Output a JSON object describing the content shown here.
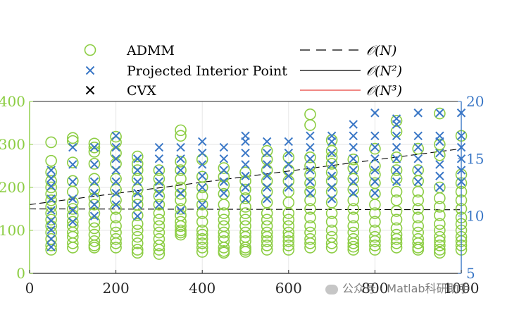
{
  "chart_data": {
    "type": "scatter",
    "legend": {
      "placement": "top",
      "entries": [
        {
          "label": "ADMM",
          "marker": "circle",
          "color": "#8ccd43"
        },
        {
          "label": "Projected Interior Point",
          "marker": "x",
          "color": "#3a77c6"
        },
        {
          "label": "CVX",
          "marker": "x",
          "color": "#000000"
        },
        {
          "label": "𝒪(N)",
          "line": "dashed",
          "color": "#000000"
        },
        {
          "label": "𝒪(N²)",
          "line": "solid",
          "color": "#000000"
        },
        {
          "label": "𝒪(N³)",
          "line": "solid",
          "color": "#e8403a"
        }
      ]
    },
    "x_axis": {
      "lim": [
        0,
        1000
      ],
      "ticks": [
        "0",
        "200",
        "400",
        "600",
        "800",
        "1000"
      ],
      "tick_values": [
        0,
        200,
        400,
        600,
        800,
        1000
      ]
    },
    "y_left": {
      "lim": [
        0,
        400
      ],
      "ticks": [
        "0",
        "100",
        "200",
        "300",
        "400"
      ],
      "tick_values": [
        0,
        100,
        200,
        300,
        400
      ],
      "color": "#8ccd43"
    },
    "y_right": {
      "lim": [
        5,
        20
      ],
      "ticks": [
        "5",
        "10",
        "15",
        "20"
      ],
      "tick_values": [
        5,
        10,
        15,
        20
      ],
      "color": "#3a77c6"
    },
    "grid": true,
    "series": [
      {
        "name": "ADMM",
        "axis": "left",
        "marker": "circle",
        "color": "#8ccd43",
        "x": [
          50,
          50,
          50,
          50,
          50,
          50,
          50,
          50,
          50,
          50,
          50,
          50,
          50,
          50,
          50,
          100,
          100,
          100,
          100,
          100,
          100,
          100,
          100,
          100,
          100,
          100,
          100,
          100,
          100,
          150,
          150,
          150,
          150,
          150,
          150,
          150,
          150,
          150,
          150,
          150,
          150,
          150,
          150,
          150,
          200,
          200,
          200,
          200,
          200,
          200,
          200,
          200,
          200,
          200,
          200,
          200,
          200,
          200,
          250,
          250,
          250,
          250,
          250,
          250,
          250,
          250,
          250,
          250,
          250,
          250,
          250,
          250,
          300,
          300,
          300,
          300,
          300,
          300,
          300,
          300,
          300,
          300,
          300,
          300,
          300,
          350,
          350,
          350,
          350,
          350,
          350,
          350,
          350,
          350,
          350,
          350,
          350,
          350,
          350,
          350,
          400,
          400,
          400,
          400,
          400,
          400,
          400,
          400,
          400,
          400,
          400,
          400,
          400,
          450,
          450,
          450,
          450,
          450,
          450,
          450,
          450,
          450,
          450,
          450,
          450,
          450,
          450,
          500,
          500,
          500,
          500,
          500,
          500,
          500,
          500,
          500,
          500,
          500,
          500,
          500,
          500,
          550,
          550,
          550,
          550,
          550,
          550,
          550,
          550,
          550,
          550,
          550,
          550,
          550,
          550,
          600,
          600,
          600,
          600,
          600,
          600,
          600,
          600,
          600,
          600,
          600,
          600,
          600,
          650,
          650,
          650,
          650,
          650,
          650,
          650,
          650,
          650,
          650,
          650,
          650,
          650,
          650,
          650,
          700,
          700,
          700,
          700,
          700,
          700,
          700,
          700,
          700,
          700,
          700,
          700,
          700,
          700,
          750,
          750,
          750,
          750,
          750,
          750,
          750,
          750,
          750,
          750,
          750,
          750,
          750,
          800,
          800,
          800,
          800,
          800,
          800,
          800,
          800,
          800,
          800,
          800,
          800,
          800,
          850,
          850,
          850,
          850,
          850,
          850,
          850,
          850,
          850,
          850,
          850,
          850,
          850,
          850,
          900,
          900,
          900,
          900,
          900,
          900,
          900,
          900,
          900,
          900,
          900,
          900,
          900,
          950,
          950,
          950,
          950,
          950,
          950,
          950,
          950,
          950,
          950,
          950,
          950,
          950,
          950,
          1000,
          1000,
          1000,
          1000,
          1000,
          1000,
          1000,
          1000,
          1000,
          1000,
          1000,
          1000,
          1000
        ],
        "y": [
          305,
          262,
          235,
          215,
          200,
          185,
          170,
          155,
          140,
          125,
          110,
          95,
          80,
          65,
          55,
          315,
          308,
          258,
          215,
          190,
          165,
          150,
          135,
          120,
          110,
          95,
          85,
          70,
          60,
          302,
          293,
          283,
          255,
          220,
          195,
          175,
          160,
          140,
          120,
          105,
          90,
          75,
          65,
          60,
          318,
          305,
          280,
          255,
          220,
          195,
          170,
          150,
          130,
          110,
          95,
          80,
          70,
          60,
          272,
          255,
          240,
          220,
          195,
          175,
          160,
          135,
          115,
          100,
          85,
          70,
          55,
          48,
          240,
          220,
          200,
          180,
          160,
          140,
          125,
          110,
          95,
          80,
          65,
          55,
          45,
          333,
          320,
          260,
          240,
          220,
          200,
          185,
          170,
          150,
          135,
          120,
          110,
          100,
          95,
          90,
          265,
          225,
          200,
          180,
          160,
          140,
          120,
          100,
          90,
          80,
          70,
          60,
          50,
          245,
          225,
          205,
          185,
          160,
          140,
          125,
          110,
          95,
          85,
          75,
          60,
          52,
          48,
          235,
          215,
          195,
          175,
          155,
          140,
          125,
          110,
          95,
          85,
          75,
          60,
          55,
          50,
          285,
          265,
          240,
          215,
          190,
          165,
          140,
          125,
          110,
          95,
          85,
          75,
          65,
          55,
          270,
          240,
          215,
          190,
          165,
          140,
          125,
          110,
          95,
          85,
          75,
          65,
          55,
          370,
          345,
          270,
          250,
          230,
          210,
          190,
          170,
          150,
          130,
          110,
          95,
          80,
          70,
          60,
          310,
          285,
          270,
          255,
          235,
          215,
          190,
          165,
          140,
          120,
          100,
          85,
          70,
          60,
          265,
          245,
          220,
          195,
          170,
          150,
          130,
          110,
          95,
          80,
          70,
          62,
          55,
          290,
          250,
          230,
          210,
          185,
          160,
          140,
          120,
          100,
          85,
          75,
          65,
          55,
          355,
          330,
          270,
          240,
          220,
          190,
          170,
          145,
          125,
          105,
          90,
          80,
          70,
          60,
          290,
          240,
          215,
          190,
          170,
          150,
          130,
          110,
          95,
          80,
          70,
          60,
          55,
          372,
          300,
          275,
          200,
          175,
          155,
          135,
          115,
          100,
          85,
          75,
          65,
          55,
          48,
          320,
          230,
          210,
          190,
          170,
          150,
          130,
          115,
          100,
          85,
          75,
          65,
          55
        ]
      },
      {
        "name": "Projected Interior Point",
        "axis": "right",
        "marker": "x",
        "color": "#3a77c6",
        "x": [
          50,
          50,
          50,
          50,
          50,
          50,
          50,
          50,
          50,
          100,
          100,
          100,
          100,
          100,
          100,
          150,
          150,
          150,
          150,
          150,
          150,
          200,
          200,
          200,
          200,
          200,
          200,
          200,
          250,
          250,
          250,
          250,
          250,
          250,
          300,
          300,
          300,
          300,
          300,
          300,
          350,
          350,
          350,
          350,
          350,
          400,
          400,
          400,
          400,
          400,
          400,
          450,
          450,
          450,
          450,
          450,
          500,
          500,
          500,
          500,
          500,
          500,
          500,
          550,
          550,
          550,
          550,
          550,
          550,
          600,
          600,
          600,
          600,
          600,
          650,
          650,
          650,
          650,
          650,
          650,
          700,
          700,
          700,
          700,
          700,
          700,
          700,
          750,
          750,
          750,
          750,
          750,
          750,
          750,
          800,
          800,
          800,
          800,
          800,
          800,
          800,
          850,
          850,
          850,
          850,
          850,
          850,
          850,
          900,
          900,
          900,
          900,
          900,
          900,
          950,
          950,
          950,
          950,
          950,
          950,
          950,
          1000,
          1000,
          1000,
          1000,
          1000,
          1000
        ],
        "y": [
          14,
          13.3,
          12.6,
          11.5,
          10.5,
          9.6,
          8.8,
          8,
          7.3,
          16,
          14.5,
          13,
          11.5,
          10.5,
          9.5,
          16,
          14.5,
          13,
          12,
          11,
          10,
          17,
          16,
          15,
          14,
          13,
          12,
          11,
          15,
          14,
          13,
          12,
          11,
          10,
          16,
          15,
          14,
          13,
          12,
          11,
          16,
          15,
          14,
          12,
          10.5,
          16.5,
          15.5,
          14.5,
          13.5,
          12.5,
          11,
          16,
          15,
          14,
          13,
          12,
          17,
          16.5,
          15.5,
          14.5,
          13.5,
          12.5,
          11.5,
          16.5,
          15.5,
          14.5,
          13.5,
          12.5,
          11.5,
          16.5,
          15.5,
          14.5,
          13.5,
          12.5,
          17,
          16,
          15,
          14,
          13,
          12,
          17,
          16.5,
          15.5,
          14.5,
          13.5,
          12.5,
          11.5,
          18,
          17,
          16,
          15,
          14,
          13,
          12,
          19,
          17,
          16,
          15,
          14,
          13,
          12,
          18.5,
          18,
          17,
          16,
          15,
          14,
          13,
          19,
          17,
          16,
          15,
          14,
          13,
          19,
          17,
          16.5,
          15.5,
          14.5,
          13.5,
          12.5,
          19,
          17,
          16,
          15,
          14,
          13
        ]
      },
      {
        "name": "CVX",
        "axis": "right",
        "marker": "x",
        "color": "#000000",
        "x": [],
        "y": []
      }
    ],
    "fits": [
      {
        "name": "𝒪(N)",
        "axis": "left",
        "style": "dashed",
        "x": [
          0,
          1000
        ],
        "y": [
          160,
          290
        ]
      },
      {
        "name": "𝒪(N)",
        "axis": "left",
        "style": "dashed",
        "x": [
          0,
          1000
        ],
        "y": [
          150,
          148
        ]
      }
    ]
  }
}
